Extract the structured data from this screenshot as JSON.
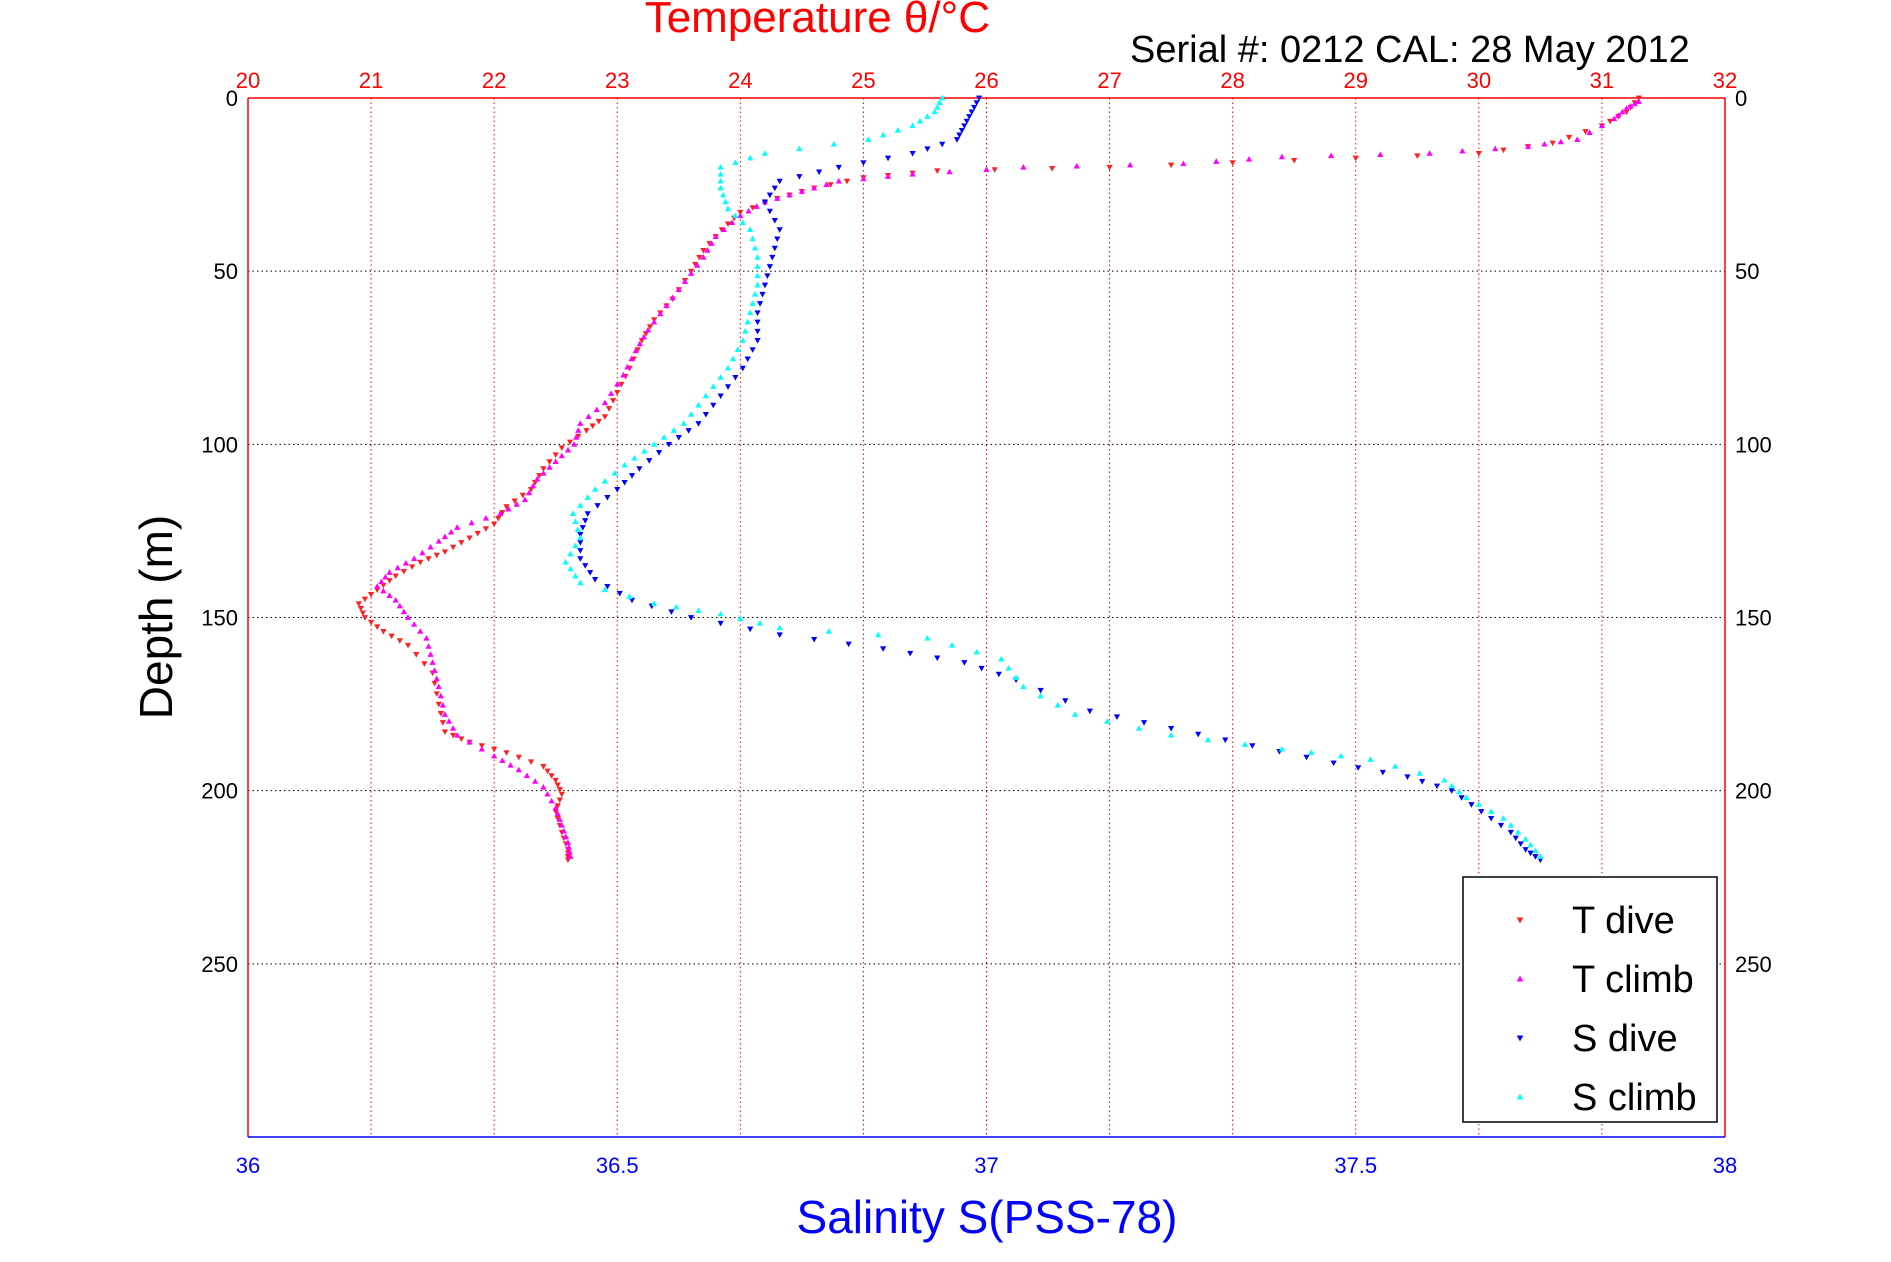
{
  "header": {
    "serial_text": "Serial #: 0212  CAL: 28 May 2012"
  },
  "chart_data": {
    "type": "scatter",
    "title": "Temperature θ/°C",
    "xlabel": "Salinity S(PSS-78)",
    "ylabel": "Depth (m)",
    "x_top_label": "Temperature θ/°C",
    "y_reversed": true,
    "ylim": [
      0,
      300
    ],
    "y_ticks": [
      0,
      50,
      100,
      150,
      200,
      250
    ],
    "x_top_lim": [
      20,
      32
    ],
    "x_top_ticks": [
      20,
      21,
      22,
      23,
      24,
      25,
      26,
      27,
      28,
      29,
      30,
      31,
      32
    ],
    "x_bottom_lim": [
      36,
      38
    ],
    "x_bottom_ticks": [
      36,
      36.5,
      37,
      37.5,
      38
    ],
    "grid": true,
    "legend_position": "bottom-right",
    "colors": {
      "temperature_axis": "#ff0000",
      "salinity_axis": "#0000ff",
      "t_dive": "#ff2020",
      "t_climb": "#ff00ff",
      "s_dive": "#0000ff",
      "s_climb": "#00ffff",
      "grid_top": "#ff0000",
      "grid_horizontal": "#000000"
    },
    "series": [
      {
        "name": "T dive",
        "axis": "temperature",
        "marker": "triangle-down",
        "color": "#ff2020",
        "points": [
          [
            31.3,
            0
          ],
          [
            31.2,
            4
          ],
          [
            31.0,
            8
          ],
          [
            30.6,
            13
          ],
          [
            30.0,
            16
          ],
          [
            28.5,
            18
          ],
          [
            27.0,
            20
          ],
          [
            25.6,
            21
          ],
          [
            25.0,
            23
          ],
          [
            24.6,
            26
          ],
          [
            24.3,
            29
          ],
          [
            24.0,
            33
          ],
          [
            23.85,
            38
          ],
          [
            23.7,
            44
          ],
          [
            23.6,
            50
          ],
          [
            23.45,
            58
          ],
          [
            23.3,
            64
          ],
          [
            23.2,
            70
          ],
          [
            23.1,
            78
          ],
          [
            23.0,
            85
          ],
          [
            22.9,
            92
          ],
          [
            22.75,
            96
          ],
          [
            22.55,
            101
          ],
          [
            22.4,
            107
          ],
          [
            22.3,
            113
          ],
          [
            22.1,
            118
          ],
          [
            22.0,
            123
          ],
          [
            21.8,
            127
          ],
          [
            21.6,
            131
          ],
          [
            21.4,
            134
          ],
          [
            21.2,
            138
          ],
          [
            21.05,
            142
          ],
          [
            20.9,
            146
          ],
          [
            20.95,
            150
          ],
          [
            21.1,
            154
          ],
          [
            21.3,
            158
          ],
          [
            21.5,
            166
          ],
          [
            21.55,
            175
          ],
          [
            21.6,
            183
          ],
          [
            21.8,
            186
          ],
          [
            22.1,
            189
          ],
          [
            22.4,
            193
          ],
          [
            22.5,
            197
          ],
          [
            22.55,
            201
          ],
          [
            22.5,
            206
          ],
          [
            22.55,
            212
          ],
          [
            22.6,
            217
          ],
          [
            22.6,
            220
          ]
        ]
      },
      {
        "name": "T climb",
        "axis": "temperature",
        "marker": "triangle-up",
        "color": "#ff00ff",
        "points": [
          [
            31.3,
            1
          ],
          [
            31.2,
            3
          ],
          [
            31.1,
            6
          ],
          [
            30.8,
            12
          ],
          [
            30.4,
            14
          ],
          [
            29.6,
            16
          ],
          [
            28.4,
            17
          ],
          [
            27.6,
            19
          ],
          [
            26.3,
            20
          ],
          [
            25.4,
            22
          ],
          [
            24.8,
            24
          ],
          [
            24.5,
            27
          ],
          [
            24.2,
            30
          ],
          [
            24.0,
            34
          ],
          [
            23.8,
            40
          ],
          [
            23.7,
            46
          ],
          [
            23.55,
            53
          ],
          [
            23.4,
            60
          ],
          [
            23.25,
            67
          ],
          [
            23.15,
            73
          ],
          [
            23.05,
            80
          ],
          [
            22.9,
            88
          ],
          [
            22.7,
            94
          ],
          [
            22.65,
            100
          ],
          [
            22.5,
            105
          ],
          [
            22.35,
            110
          ],
          [
            22.25,
            116
          ],
          [
            22.05,
            120
          ],
          [
            21.7,
            124
          ],
          [
            21.55,
            128
          ],
          [
            21.35,
            133
          ],
          [
            21.15,
            137
          ],
          [
            21.05,
            141
          ],
          [
            21.2,
            145
          ],
          [
            21.3,
            150
          ],
          [
            21.45,
            156
          ],
          [
            21.5,
            163
          ],
          [
            21.55,
            170
          ],
          [
            21.6,
            178
          ],
          [
            21.7,
            184
          ],
          [
            22.0,
            190
          ],
          [
            22.2,
            194
          ],
          [
            22.4,
            199
          ],
          [
            22.5,
            205
          ],
          [
            22.55,
            210
          ],
          [
            22.6,
            215
          ],
          [
            22.62,
            219
          ]
        ]
      },
      {
        "name": "S dive",
        "axis": "salinity",
        "marker": "triangle-down",
        "color": "#0000ff",
        "points": [
          [
            36.99,
            0
          ],
          [
            36.98,
            4
          ],
          [
            36.97,
            8
          ],
          [
            36.96,
            12
          ],
          [
            36.9,
            16
          ],
          [
            36.8,
            20
          ],
          [
            36.72,
            24
          ],
          [
            36.7,
            30
          ],
          [
            36.72,
            38
          ],
          [
            36.71,
            46
          ],
          [
            36.7,
            54
          ],
          [
            36.69,
            62
          ],
          [
            36.69,
            70
          ],
          [
            36.67,
            78
          ],
          [
            36.64,
            86
          ],
          [
            36.61,
            94
          ],
          [
            36.57,
            100
          ],
          [
            36.53,
            107
          ],
          [
            36.5,
            113
          ],
          [
            36.46,
            120
          ],
          [
            36.45,
            126
          ],
          [
            36.45,
            133
          ],
          [
            36.47,
            139
          ],
          [
            36.52,
            145
          ],
          [
            36.6,
            150
          ],
          [
            36.72,
            155
          ],
          [
            36.86,
            159
          ],
          [
            36.97,
            163
          ],
          [
            37.04,
            168
          ],
          [
            37.14,
            177
          ],
          [
            37.25,
            182
          ],
          [
            37.36,
            187
          ],
          [
            37.47,
            192
          ],
          [
            37.57,
            196
          ],
          [
            37.63,
            200
          ],
          [
            37.67,
            206
          ],
          [
            37.71,
            212
          ],
          [
            37.73,
            217
          ],
          [
            37.75,
            220
          ]
        ]
      },
      {
        "name": "S climb",
        "axis": "salinity",
        "marker": "triangle-up",
        "color": "#00ffff",
        "points": [
          [
            36.94,
            0
          ],
          [
            36.93,
            4
          ],
          [
            36.9,
            8
          ],
          [
            36.84,
            12
          ],
          [
            36.7,
            16
          ],
          [
            36.64,
            20
          ],
          [
            36.64,
            26
          ],
          [
            36.65,
            32
          ],
          [
            36.68,
            38
          ],
          [
            36.69,
            46
          ],
          [
            36.69,
            54
          ],
          [
            36.68,
            62
          ],
          [
            36.67,
            70
          ],
          [
            36.65,
            78
          ],
          [
            36.62,
            86
          ],
          [
            36.59,
            94
          ],
          [
            36.55,
            100
          ],
          [
            36.51,
            106
          ],
          [
            36.47,
            113
          ],
          [
            36.44,
            120
          ],
          [
            36.45,
            127
          ],
          [
            36.43,
            134
          ],
          [
            36.45,
            140
          ],
          [
            36.55,
            146
          ],
          [
            36.64,
            149
          ],
          [
            36.72,
            153
          ],
          [
            36.92,
            156
          ],
          [
            37.02,
            162
          ],
          [
            37.05,
            170
          ],
          [
            37.12,
            178
          ],
          [
            37.25,
            184
          ],
          [
            37.4,
            188
          ],
          [
            37.52,
            191
          ],
          [
            37.62,
            197
          ],
          [
            37.65,
            202
          ],
          [
            37.7,
            208
          ],
          [
            37.73,
            214
          ],
          [
            37.75,
            219
          ]
        ]
      }
    ],
    "legend": [
      "T dive",
      "T climb",
      "S dive",
      "S climb"
    ]
  }
}
